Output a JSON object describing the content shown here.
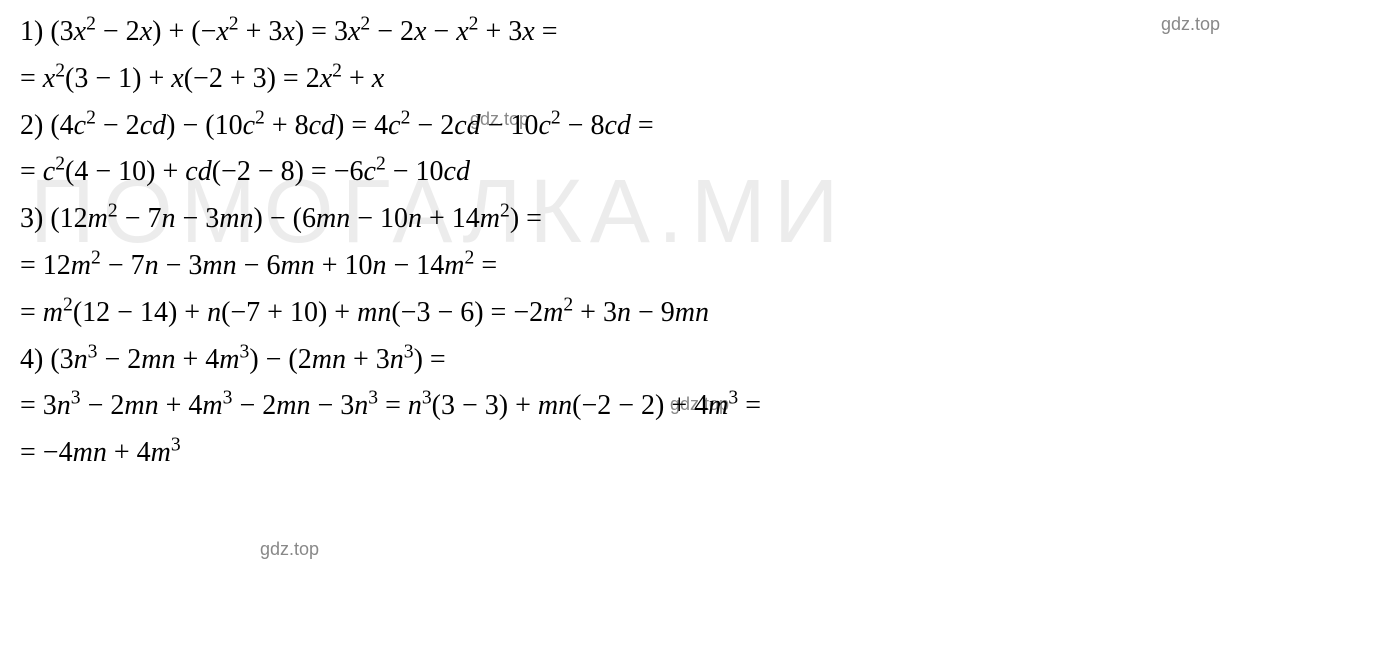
{
  "background_color": "#ffffff",
  "text_color": "#000000",
  "font_family": "Cambria Math, Times New Roman, serif",
  "font_size_pt": 21,
  "watermark_small": {
    "text": "gdz.top",
    "color": "#888888",
    "font_size_pt": 14
  },
  "watermark_large": {
    "text": "ПОМОГАЛКА.МИ",
    "color": "rgba(200,200,200,0.35)",
    "font_size_pt": 68
  },
  "lines": {
    "l1": "1) (3x² − 2x) + (−x² + 3x) = 3x² − 2x − x² + 3x =",
    "l2": "= x²(3 − 1) + x(−2 + 3) = 2x² + x",
    "l3": "2) (4c² − 2cd) − (10c² + 8cd) = 4c² − 2cd − 10c² − 8cd =",
    "l4": "= c²(4 − 10) + cd(−2 − 8) = −6c² − 10cd",
    "l5": "3) (12m² − 7n − 3mn) − (6mn − 10n + 14m²) =",
    "l6": "= 12m² − 7n − 3mn − 6mn + 10n − 14m² =",
    "l7": "= m²(12 − 14) + n(−7 + 10) + mn(−3 − 6) = −2m² + 3n − 9mn",
    "l8": "4) (3n³ − 2mn + 4m³) − (2mn + 3n³) =",
    "l9": "= 3n³ − 2mn + 4m³ − 2mn − 3n³ = n³(3 − 3) + mn(−2 − 2) + 4m³ =",
    "l10": "= −4mn + 4m³"
  }
}
